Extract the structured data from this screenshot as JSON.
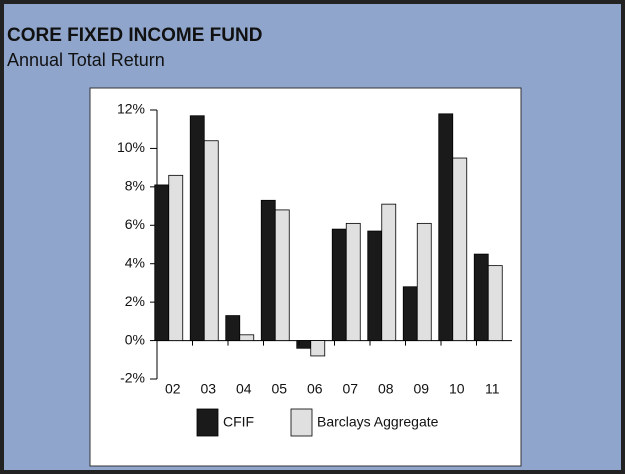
{
  "chart_data": {
    "type": "bar",
    "title": "CORE FIXED INCOME FUND",
    "subtitle": "Annual Total Return",
    "categories": [
      "02",
      "03",
      "04",
      "05",
      "06",
      "07",
      "08",
      "09",
      "10",
      "11"
    ],
    "series": [
      {
        "name": "CFIF",
        "color": "#1a1a1a",
        "values": [
          8.1,
          11.7,
          1.3,
          7.3,
          -0.4,
          5.8,
          5.7,
          2.8,
          11.8,
          4.5
        ]
      },
      {
        "name": "Barclays Aggregate",
        "color": "#e0e0e0",
        "values": [
          8.6,
          10.4,
          0.3,
          6.8,
          -0.8,
          6.1,
          7.1,
          6.1,
          9.5,
          3.9
        ]
      }
    ],
    "ylim": [
      -2,
      12
    ],
    "yticks": [
      {
        "value": -2,
        "label": "-2%"
      },
      {
        "value": 0,
        "label": "0%"
      },
      {
        "value": 2,
        "label": "2%"
      },
      {
        "value": 4,
        "label": "4%"
      },
      {
        "value": 6,
        "label": "6%"
      },
      {
        "value": 8,
        "label": "8%"
      },
      {
        "value": 10,
        "label": "10%"
      },
      {
        "value": 12,
        "label": "12%"
      }
    ],
    "legend": "bottom"
  }
}
